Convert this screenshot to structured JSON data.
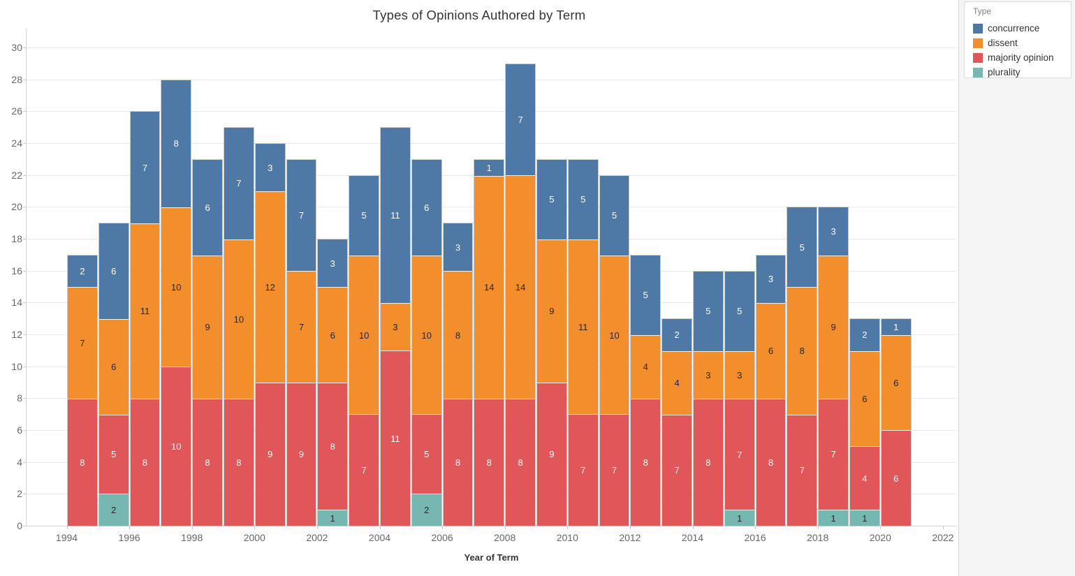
{
  "title": "Types of Opinions Authored by Term",
  "legend": {
    "title": "Type",
    "items": [
      {
        "label": "concurrence",
        "color": "#4e79a7"
      },
      {
        "label": "dissent",
        "color": "#f28e2b"
      },
      {
        "label": "majority opinion",
        "color": "#e15759"
      },
      {
        "label": "plurality",
        "color": "#76b7b2"
      }
    ]
  },
  "chart_data": {
    "type": "bar",
    "stacked": true,
    "title": "Types of Opinions Authored by Term",
    "xlabel": "Year of Term",
    "ylabel": "",
    "ylim": [
      0,
      30
    ],
    "grid": true,
    "legend_position": "right-panel",
    "y_ticks": [
      0,
      2,
      4,
      6,
      8,
      10,
      12,
      14,
      16,
      18,
      20,
      22,
      24,
      26,
      28,
      30
    ],
    "x_tick_labels": [
      1994,
      1996,
      1998,
      2000,
      2002,
      2004,
      2006,
      2008,
      2010,
      2012,
      2014,
      2016,
      2018,
      2020,
      2022
    ],
    "categories": [
      1994,
      1995,
      1996,
      1997,
      1998,
      1999,
      2000,
      2001,
      2002,
      2003,
      2004,
      2005,
      2006,
      2007,
      2008,
      2009,
      2010,
      2011,
      2012,
      2013,
      2014,
      2015,
      2016,
      2017,
      2018,
      2019,
      2020
    ],
    "stack_order_bottom_to_top": [
      "plurality",
      "majority opinion",
      "dissent",
      "concurrence"
    ],
    "series": [
      {
        "name": "plurality",
        "color": "#76b7b2",
        "label_color": "#262626",
        "values": [
          0,
          2,
          0,
          0,
          0,
          0,
          0,
          0,
          1,
          0,
          0,
          2,
          0,
          0,
          0,
          0,
          0,
          0,
          0,
          0,
          0,
          1,
          0,
          0,
          1,
          1,
          0
        ]
      },
      {
        "name": "majority opinion",
        "color": "#e15759",
        "label_color": "#ffffff",
        "values": [
          8,
          5,
          8,
          10,
          8,
          8,
          9,
          9,
          8,
          7,
          11,
          5,
          8,
          8,
          8,
          9,
          7,
          7,
          8,
          7,
          8,
          7,
          8,
          7,
          7,
          4,
          6
        ]
      },
      {
        "name": "dissent",
        "color": "#f28e2b",
        "label_color": "#262626",
        "values": [
          7,
          6,
          11,
          10,
          9,
          10,
          12,
          7,
          6,
          10,
          3,
          10,
          8,
          14,
          14,
          9,
          11,
          10,
          4,
          4,
          3,
          3,
          6,
          8,
          9,
          6,
          6
        ]
      },
      {
        "name": "concurrence",
        "color": "#4e79a7",
        "label_color": "#ffffff",
        "values": [
          2,
          6,
          7,
          8,
          6,
          7,
          3,
          7,
          3,
          5,
          11,
          6,
          3,
          1,
          7,
          5,
          5,
          5,
          5,
          2,
          5,
          5,
          3,
          5,
          3,
          2,
          1
        ]
      }
    ],
    "totals": [
      17,
      19,
      26,
      28,
      23,
      25,
      24,
      23,
      18,
      22,
      25,
      23,
      19,
      23,
      29,
      23,
      23,
      22,
      17,
      13,
      16,
      16,
      17,
      20,
      20,
      13,
      13
    ]
  }
}
